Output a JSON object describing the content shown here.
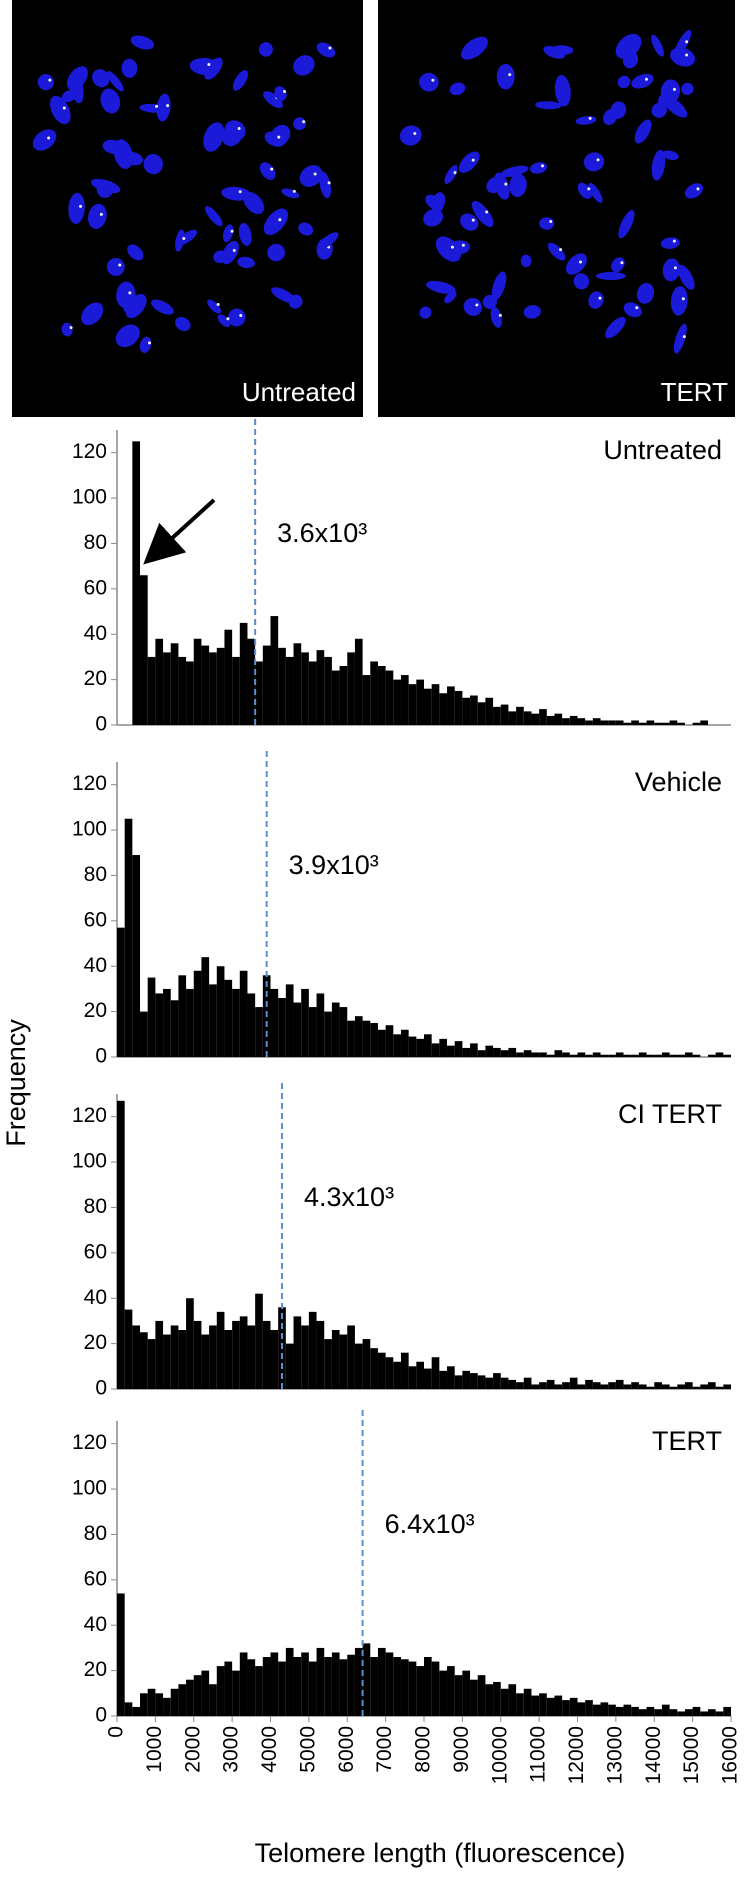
{
  "images": [
    {
      "label": "Untreated"
    },
    {
      "label": "TERT"
    }
  ],
  "y_label": "Frequency",
  "x_label": "Telomere length (fluorescence)",
  "chart_data": [
    {
      "type": "histogram",
      "title": "Untreated",
      "color": "#000000",
      "median": 3600,
      "median_label": "3.6x10³",
      "median_color": "#5b8fd0",
      "bins": [
        0,
        200,
        400,
        600,
        800,
        1000,
        1200,
        1400,
        1600,
        1800,
        2000,
        2200,
        2400,
        2600,
        2800,
        3000,
        3200,
        3400,
        3600,
        3800,
        4000,
        4200,
        4400,
        4600,
        4800,
        5000,
        5200,
        5400,
        5600,
        5800,
        6000,
        6200,
        6400,
        6600,
        6800,
        7000,
        7200,
        7400,
        7600,
        7800,
        8000,
        8200,
        8400,
        8600,
        8800,
        9000,
        9200,
        9400,
        9600,
        9800,
        10000,
        10200,
        10400,
        10600,
        10800,
        11000,
        11200,
        11400,
        11600,
        11800,
        12000,
        12200,
        12400,
        12600,
        12800,
        13000,
        13200,
        13400,
        13600,
        13800,
        14000,
        14200,
        14400,
        14600,
        14800,
        15000,
        15200,
        15400,
        15600,
        15800,
        16000
      ],
      "values": [
        0,
        0,
        125,
        66,
        30,
        38,
        32,
        36,
        30,
        28,
        38,
        35,
        32,
        34,
        42,
        30,
        45,
        38,
        28,
        35,
        48,
        34,
        30,
        36,
        32,
        28,
        33,
        30,
        24,
        26,
        32,
        38,
        22,
        28,
        26,
        24,
        20,
        22,
        18,
        20,
        16,
        18,
        14,
        17,
        15,
        12,
        13,
        10,
        12,
        8,
        9,
        6,
        8,
        6,
        5,
        7,
        4,
        5,
        3,
        4,
        3,
        2,
        3,
        2,
        2,
        2,
        1,
        2,
        1,
        2,
        1,
        1,
        2,
        1,
        0,
        1,
        2,
        0,
        0,
        0
      ],
      "xlim": [
        0,
        16000
      ],
      "ylim": [
        0,
        130
      ],
      "yticks": [
        0,
        20,
        40,
        60,
        80,
        100,
        120
      ]
    },
    {
      "type": "histogram",
      "title": "Vehicle",
      "color": "#000000",
      "median": 3900,
      "median_label": "3.9x10³",
      "median_color": "#5b8fd0",
      "bins": [
        0,
        200,
        400,
        600,
        800,
        1000,
        1200,
        1400,
        1600,
        1800,
        2000,
        2200,
        2400,
        2600,
        2800,
        3000,
        3200,
        3400,
        3600,
        3800,
        4000,
        4200,
        4400,
        4600,
        4800,
        5000,
        5200,
        5400,
        5600,
        5800,
        6000,
        6200,
        6400,
        6600,
        6800,
        7000,
        7200,
        7400,
        7600,
        7800,
        8000,
        8200,
        8400,
        8600,
        8800,
        9000,
        9200,
        9400,
        9600,
        9800,
        10000,
        10200,
        10400,
        10600,
        10800,
        11000,
        11200,
        11400,
        11600,
        11800,
        12000,
        12200,
        12400,
        12600,
        12800,
        13000,
        13200,
        13400,
        13600,
        13800,
        14000,
        14200,
        14400,
        14600,
        14800,
        15000,
        15200,
        15400,
        15600,
        15800,
        16000
      ],
      "values": [
        57,
        105,
        89,
        20,
        35,
        28,
        30,
        25,
        36,
        30,
        38,
        44,
        32,
        40,
        34,
        30,
        38,
        28,
        22,
        36,
        30,
        26,
        32,
        24,
        30,
        22,
        28,
        20,
        24,
        22,
        16,
        18,
        16,
        15,
        12,
        14,
        10,
        12,
        9,
        8,
        10,
        6,
        8,
        5,
        7,
        4,
        6,
        3,
        5,
        4,
        3,
        4,
        2,
        3,
        2,
        2,
        1,
        3,
        2,
        1,
        2,
        1,
        2,
        1,
        1,
        2,
        1,
        1,
        2,
        1,
        1,
        2,
        1,
        1,
        2,
        1,
        0,
        1,
        2,
        1
      ],
      "xlim": [
        0,
        16000
      ],
      "ylim": [
        0,
        130
      ],
      "yticks": [
        0,
        20,
        40,
        60,
        80,
        100,
        120
      ]
    },
    {
      "type": "histogram",
      "title": "CI TERT",
      "color": "#000000",
      "median": 4300,
      "median_label": "4.3x10³",
      "median_color": "#5b8fd0",
      "bins": [
        0,
        200,
        400,
        600,
        800,
        1000,
        1200,
        1400,
        1600,
        1800,
        2000,
        2200,
        2400,
        2600,
        2800,
        3000,
        3200,
        3400,
        3600,
        3800,
        4000,
        4200,
        4400,
        4600,
        4800,
        5000,
        5200,
        5400,
        5600,
        5800,
        6000,
        6200,
        6400,
        6600,
        6800,
        7000,
        7200,
        7400,
        7600,
        7800,
        8000,
        8200,
        8400,
        8600,
        8800,
        9000,
        9200,
        9400,
        9600,
        9800,
        10000,
        10200,
        10400,
        10600,
        10800,
        11000,
        11200,
        11400,
        11600,
        11800,
        12000,
        12200,
        12400,
        12600,
        12800,
        13000,
        13200,
        13400,
        13600,
        13800,
        14000,
        14200,
        14400,
        14600,
        14800,
        15000,
        15200,
        15400,
        15600,
        15800,
        16000
      ],
      "values": [
        127,
        35,
        28,
        25,
        22,
        30,
        24,
        28,
        26,
        40,
        30,
        24,
        28,
        34,
        26,
        30,
        32,
        28,
        42,
        30,
        26,
        36,
        20,
        32,
        28,
        34,
        30,
        22,
        26,
        24,
        28,
        20,
        22,
        18,
        16,
        14,
        12,
        16,
        10,
        12,
        9,
        14,
        8,
        10,
        6,
        8,
        7,
        6,
        5,
        7,
        5,
        4,
        3,
        5,
        2,
        3,
        4,
        2,
        3,
        5,
        2,
        4,
        3,
        2,
        3,
        4,
        2,
        3,
        2,
        1,
        3,
        2,
        1,
        2,
        3,
        1,
        2,
        3,
        1,
        2
      ],
      "xlim": [
        0,
        16000
      ],
      "ylim": [
        0,
        130
      ],
      "yticks": [
        0,
        20,
        40,
        60,
        80,
        100,
        120
      ]
    },
    {
      "type": "histogram",
      "title": "TERT",
      "color": "#000000",
      "median": 6400,
      "median_label": "6.4x10³",
      "median_color": "#5b8fd0",
      "bins": [
        0,
        200,
        400,
        600,
        800,
        1000,
        1200,
        1400,
        1600,
        1800,
        2000,
        2200,
        2400,
        2600,
        2800,
        3000,
        3200,
        3400,
        3600,
        3800,
        4000,
        4200,
        4400,
        4600,
        4800,
        5000,
        5200,
        5400,
        5600,
        5800,
        6000,
        6200,
        6400,
        6600,
        6800,
        7000,
        7200,
        7400,
        7600,
        7800,
        8000,
        8200,
        8400,
        8600,
        8800,
        9000,
        9200,
        9400,
        9600,
        9800,
        10000,
        10200,
        10400,
        10600,
        10800,
        11000,
        11200,
        11400,
        11600,
        11800,
        12000,
        12200,
        12400,
        12600,
        12800,
        13000,
        13200,
        13400,
        13600,
        13800,
        14000,
        14200,
        14400,
        14600,
        14800,
        15000,
        15200,
        15400,
        15600,
        15800,
        16000
      ],
      "values": [
        54,
        6,
        4,
        10,
        12,
        10,
        8,
        12,
        14,
        16,
        18,
        20,
        14,
        22,
        24,
        20,
        28,
        25,
        22,
        26,
        28,
        24,
        30,
        26,
        28,
        24,
        30,
        26,
        28,
        25,
        27,
        30,
        32,
        26,
        30,
        28,
        26,
        25,
        24,
        22,
        26,
        24,
        20,
        22,
        18,
        20,
        16,
        18,
        14,
        15,
        12,
        14,
        10,
        12,
        9,
        10,
        8,
        9,
        7,
        8,
        6,
        7,
        5,
        6,
        5,
        4,
        5,
        4,
        3,
        4,
        3,
        5,
        3,
        2,
        3,
        4,
        2,
        3,
        2,
        4
      ],
      "xlim": [
        0,
        16000
      ],
      "ylim": [
        0,
        130
      ],
      "yticks": [
        0,
        20,
        40,
        60,
        80,
        100,
        120
      ],
      "xticks": [
        0,
        1000,
        2000,
        3000,
        4000,
        5000,
        6000,
        7000,
        8000,
        9000,
        10000,
        11000,
        12000,
        13000,
        14000,
        15000,
        16000
      ]
    }
  ]
}
